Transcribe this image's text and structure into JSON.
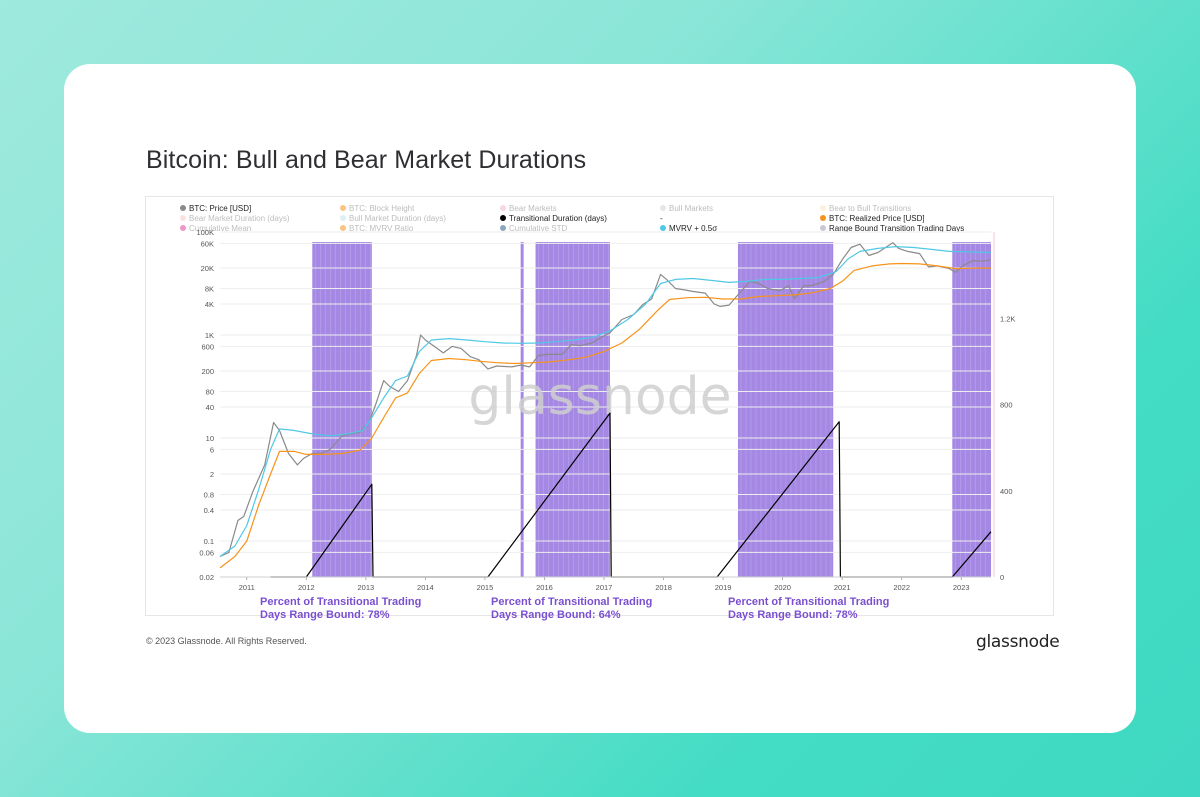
{
  "page": {
    "title": "Bitcoin: Bull and Bear Market Durations",
    "copyright": "© 2023 Glassnode. All Rights Reserved.",
    "brand": "glassnode",
    "watermark": "glassnode"
  },
  "annotations": [
    {
      "line1": "Percent of Transitional Trading",
      "line2": "Days Range Bound: 78%"
    },
    {
      "line1": "Percent of Transitional Trading",
      "line2": "Days Range Bound: 64%"
    },
    {
      "line1": "Percent of Transitional Trading",
      "line2": "Days Range Bound: 78%"
    }
  ],
  "legend": [
    {
      "label": "BTC: Price [USD]",
      "color": "#8a8a8a",
      "active": true
    },
    {
      "label": "BTC: Block Height",
      "color": "#f7931a",
      "active": false
    },
    {
      "label": "Bear Markets",
      "color": "#f4b6c2",
      "active": false
    },
    {
      "label": "Bull Markets",
      "color": "#c9d6d2",
      "active": false
    },
    {
      "label": "Bear to Bull Transitions",
      "color": "#fde6c0",
      "active": false
    },
    {
      "label": "Bear Market Duration (days)",
      "color": "#f6c9c9",
      "active": false
    },
    {
      "label": "Bull Market Duration (days)",
      "color": "#bfe4ea",
      "active": false
    },
    {
      "label": "Transitional Duration (days)",
      "color": "#000000",
      "active": true
    },
    {
      "label": "-",
      "color": "",
      "active": true
    },
    {
      "label": "BTC: Realized Price [USD]",
      "color": "#f7931a",
      "active": true
    },
    {
      "label": "Cumulative Mean",
      "color": "#e0409b",
      "active": false
    },
    {
      "label": "BTC: MVRV Ratio",
      "color": "#f7931a",
      "active": false
    },
    {
      "label": "Cumulative STD",
      "color": "#2c5e8c",
      "active": false
    },
    {
      "label": "MVRV + 0.5σ",
      "color": "#4fc8e6",
      "active": true
    },
    {
      "label": "Range Bound Transition Trading Days",
      "color": "#c9c9d6",
      "active": true
    }
  ],
  "chart_data": {
    "type": "line",
    "title": "Bitcoin: Bull and Bear Market Durations",
    "y_left": {
      "scale": "log",
      "ticks": [
        0.02,
        0.06,
        0.1,
        0.4,
        0.8,
        2,
        6,
        10,
        40,
        80,
        200,
        600,
        1000,
        4000,
        8000,
        20000,
        60000,
        100000
      ],
      "tick_labels": [
        "0.02",
        "0.06",
        "0.1",
        "0.4",
        "0.8",
        "2",
        "6",
        "10",
        "40",
        "80",
        "200",
        "600",
        "1K",
        "4K",
        "8K",
        "20K",
        "60K",
        "100K"
      ],
      "ylim": [
        0.02,
        100000
      ]
    },
    "y_right": {
      "scale": "linear",
      "ticks": [
        0,
        400,
        800,
        1200
      ],
      "tick_labels": [
        "0",
        "400",
        "800",
        "1.2K"
      ],
      "ylim": [
        0,
        1600
      ]
    },
    "x_axis": {
      "tick_labels": [
        "2011",
        "2012",
        "2013",
        "2014",
        "2015",
        "2016",
        "2017",
        "2018",
        "2019",
        "2020",
        "2021",
        "2022",
        "2023"
      ],
      "range": [
        2010.55,
        2023.5
      ]
    },
    "series": [
      {
        "name": "BTC: Price [USD]",
        "color": "#8a8a8a",
        "axis": "left",
        "points": [
          [
            2010.55,
            0.05
          ],
          [
            2010.7,
            0.06
          ],
          [
            2010.85,
            0.25
          ],
          [
            2010.95,
            0.3
          ],
          [
            2011.1,
            0.9
          ],
          [
            2011.3,
            3
          ],
          [
            2011.45,
            20
          ],
          [
            2011.55,
            14
          ],
          [
            2011.7,
            5
          ],
          [
            2011.85,
            3
          ],
          [
            2011.95,
            4
          ],
          [
            2012.1,
            5
          ],
          [
            2012.25,
            5
          ],
          [
            2012.4,
            6
          ],
          [
            2012.6,
            11
          ],
          [
            2012.75,
            12
          ],
          [
            2012.9,
            13
          ],
          [
            2013.05,
            20
          ],
          [
            2013.15,
            40
          ],
          [
            2013.3,
            130
          ],
          [
            2013.4,
            100
          ],
          [
            2013.55,
            80
          ],
          [
            2013.7,
            130
          ],
          [
            2013.85,
            400
          ],
          [
            2013.92,
            1000
          ],
          [
            2014.0,
            800
          ],
          [
            2014.15,
            600
          ],
          [
            2014.3,
            450
          ],
          [
            2014.45,
            600
          ],
          [
            2014.6,
            550
          ],
          [
            2014.75,
            380
          ],
          [
            2014.9,
            330
          ],
          [
            2015.05,
            220
          ],
          [
            2015.2,
            250
          ],
          [
            2015.45,
            240
          ],
          [
            2015.6,
            260
          ],
          [
            2015.75,
            240
          ],
          [
            2015.9,
            400
          ],
          [
            2016.05,
            420
          ],
          [
            2016.3,
            420
          ],
          [
            2016.45,
            650
          ],
          [
            2016.6,
            620
          ],
          [
            2016.8,
            700
          ],
          [
            2016.95,
            900
          ],
          [
            2017.1,
            1100
          ],
          [
            2017.3,
            2000
          ],
          [
            2017.5,
            2500
          ],
          [
            2017.65,
            3900
          ],
          [
            2017.8,
            5000
          ],
          [
            2017.95,
            15000
          ],
          [
            2018.05,
            12000
          ],
          [
            2018.2,
            8000
          ],
          [
            2018.35,
            7500
          ],
          [
            2018.5,
            7000
          ],
          [
            2018.7,
            6500
          ],
          [
            2018.85,
            4000
          ],
          [
            2018.95,
            3600
          ],
          [
            2019.1,
            3800
          ],
          [
            2019.3,
            7000
          ],
          [
            2019.45,
            11000
          ],
          [
            2019.6,
            10000
          ],
          [
            2019.75,
            8000
          ],
          [
            2019.95,
            7200
          ],
          [
            2020.1,
            9000
          ],
          [
            2020.2,
            5000
          ],
          [
            2020.35,
            9000
          ],
          [
            2020.5,
            9200
          ],
          [
            2020.7,
            11000
          ],
          [
            2020.85,
            15000
          ],
          [
            2021.0,
            29000
          ],
          [
            2021.15,
            50000
          ],
          [
            2021.3,
            58000
          ],
          [
            2021.45,
            35000
          ],
          [
            2021.6,
            40000
          ],
          [
            2021.85,
            62000
          ],
          [
            2021.95,
            48000
          ],
          [
            2022.1,
            42000
          ],
          [
            2022.3,
            38000
          ],
          [
            2022.45,
            21000
          ],
          [
            2022.6,
            22000
          ],
          [
            2022.8,
            19500
          ],
          [
            2022.9,
            16500
          ],
          [
            2023.05,
            23000
          ],
          [
            2023.2,
            28000
          ],
          [
            2023.35,
            27000
          ],
          [
            2023.5,
            29000
          ]
        ]
      },
      {
        "name": "BTC: Realized Price [USD]",
        "color": "#f7931a",
        "axis": "left",
        "points": [
          [
            2010.55,
            0.03
          ],
          [
            2010.8,
            0.05
          ],
          [
            2011.0,
            0.1
          ],
          [
            2011.2,
            0.5
          ],
          [
            2011.4,
            2
          ],
          [
            2011.55,
            5.5
          ],
          [
            2011.8,
            5.5
          ],
          [
            2012.0,
            4.8
          ],
          [
            2012.3,
            4.8
          ],
          [
            2012.6,
            5
          ],
          [
            2012.9,
            5.8
          ],
          [
            2013.1,
            10
          ],
          [
            2013.3,
            25
          ],
          [
            2013.5,
            60
          ],
          [
            2013.7,
            75
          ],
          [
            2013.9,
            180
          ],
          [
            2014.1,
            320
          ],
          [
            2014.4,
            350
          ],
          [
            2014.7,
            330
          ],
          [
            2014.9,
            310
          ],
          [
            2015.2,
            290
          ],
          [
            2015.5,
            280
          ],
          [
            2015.8,
            290
          ],
          [
            2016.1,
            300
          ],
          [
            2016.4,
            330
          ],
          [
            2016.7,
            370
          ],
          [
            2017.0,
            480
          ],
          [
            2017.3,
            700
          ],
          [
            2017.6,
            1300
          ],
          [
            2017.9,
            3000
          ],
          [
            2018.1,
            4900
          ],
          [
            2018.4,
            5300
          ],
          [
            2018.7,
            5400
          ],
          [
            2019.0,
            5000
          ],
          [
            2019.3,
            5000
          ],
          [
            2019.6,
            5600
          ],
          [
            2019.9,
            5800
          ],
          [
            2020.2,
            6000
          ],
          [
            2020.5,
            6600
          ],
          [
            2020.8,
            8000
          ],
          [
            2021.0,
            11000
          ],
          [
            2021.2,
            18000
          ],
          [
            2021.5,
            22000
          ],
          [
            2021.8,
            24000
          ],
          [
            2022.0,
            24500
          ],
          [
            2022.3,
            24000
          ],
          [
            2022.6,
            22000
          ],
          [
            2022.9,
            19500
          ],
          [
            2023.2,
            19800
          ],
          [
            2023.5,
            20000
          ]
        ]
      },
      {
        "name": "MVRV + 0.5σ",
        "color": "#4fc8e6",
        "axis": "left",
        "points": [
          [
            2010.55,
            0.05
          ],
          [
            2010.8,
            0.08
          ],
          [
            2011.0,
            0.2
          ],
          [
            2011.2,
            1
          ],
          [
            2011.4,
            6
          ],
          [
            2011.55,
            15
          ],
          [
            2011.8,
            14
          ],
          [
            2012.1,
            12
          ],
          [
            2012.4,
            11
          ],
          [
            2012.7,
            12
          ],
          [
            2012.95,
            14
          ],
          [
            2013.1,
            25
          ],
          [
            2013.3,
            60
          ],
          [
            2013.5,
            130
          ],
          [
            2013.7,
            160
          ],
          [
            2013.9,
            480
          ],
          [
            2014.1,
            800
          ],
          [
            2014.4,
            850
          ],
          [
            2014.7,
            800
          ],
          [
            2015.0,
            740
          ],
          [
            2015.3,
            700
          ],
          [
            2015.6,
            690
          ],
          [
            2015.9,
            700
          ],
          [
            2016.2,
            740
          ],
          [
            2016.5,
            800
          ],
          [
            2016.8,
            900
          ],
          [
            2017.1,
            1200
          ],
          [
            2017.4,
            2000
          ],
          [
            2017.7,
            4000
          ],
          [
            2017.95,
            10000
          ],
          [
            2018.2,
            12000
          ],
          [
            2018.5,
            12500
          ],
          [
            2018.8,
            11500
          ],
          [
            2019.1,
            10500
          ],
          [
            2019.4,
            11000
          ],
          [
            2019.7,
            12000
          ],
          [
            2020.0,
            12000
          ],
          [
            2020.3,
            12500
          ],
          [
            2020.6,
            13000
          ],
          [
            2020.9,
            17000
          ],
          [
            2021.1,
            30000
          ],
          [
            2021.3,
            42000
          ],
          [
            2021.6,
            48000
          ],
          [
            2021.9,
            52000
          ],
          [
            2022.2,
            50000
          ],
          [
            2022.5,
            46000
          ],
          [
            2022.8,
            42000
          ],
          [
            2023.1,
            41000
          ],
          [
            2023.5,
            40000
          ]
        ]
      },
      {
        "name": "Transitional Duration (days)",
        "color": "#000000",
        "axis": "right",
        "points": [
          [
            2011.4,
            0
          ],
          [
            2012.0,
            0
          ],
          [
            2013.1,
            430
          ],
          [
            2013.12,
            0
          ],
          [
            2015.05,
            0
          ],
          [
            2017.1,
            760
          ],
          [
            2017.12,
            0
          ],
          [
            2018.9,
            0
          ],
          [
            2020.95,
            720
          ],
          [
            2020.97,
            0
          ],
          [
            2022.85,
            0
          ],
          [
            2023.5,
            210
          ]
        ]
      }
    ],
    "range_bound_bands": [
      {
        "start": 2012.1,
        "end": 2013.1
      },
      {
        "start": 2015.6,
        "end": 2015.65
      },
      {
        "start": 2015.85,
        "end": 2017.1
      },
      {
        "start": 2019.25,
        "end": 2020.85
      },
      {
        "start": 2022.85,
        "end": 2023.5
      }
    ]
  }
}
